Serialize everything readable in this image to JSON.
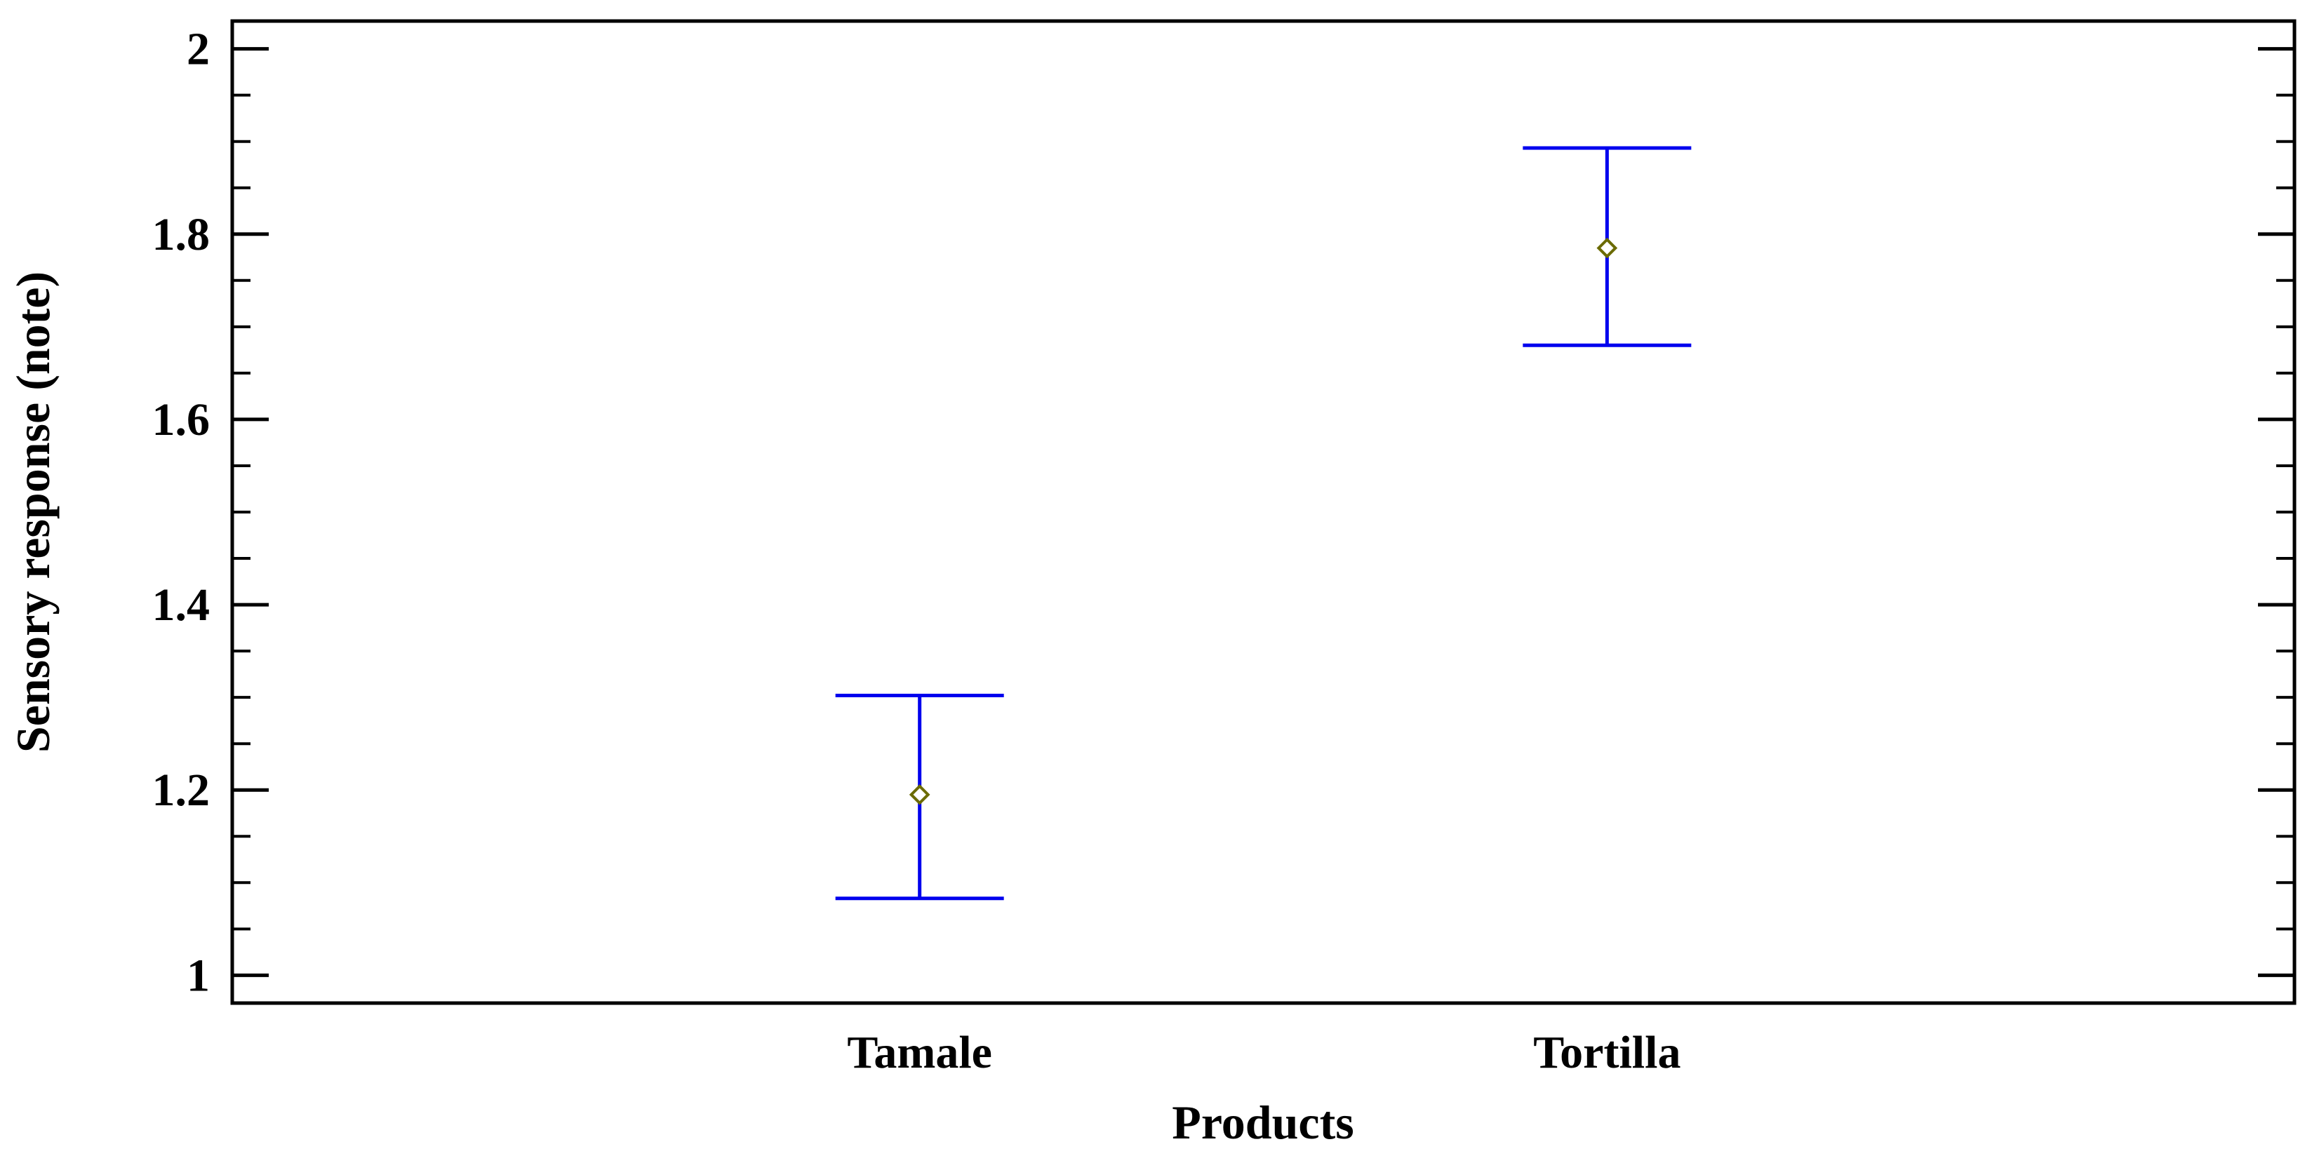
{
  "chart_data": {
    "type": "scatter",
    "subtype": "means-with-error-bars",
    "title": "",
    "xlabel": "Products",
    "ylabel": "Sensory response (note)",
    "categories": [
      "Tamale",
      "Tortilla"
    ],
    "series": [
      {
        "means": [
          1.195,
          1.785
        ],
        "lower": [
          1.083,
          1.68
        ],
        "upper": [
          1.302,
          1.893
        ]
      }
    ],
    "ylim": [
      0.97,
      2.03
    ],
    "yticks": [
      1,
      1.2,
      1.4,
      1.6,
      1.8,
      2
    ],
    "ytick_labels": [
      "1",
      "1.2",
      "1.4",
      "1.6",
      "1.8",
      "2"
    ],
    "y_minor_step": 0.05,
    "grid": false,
    "legend": "none",
    "colors": {
      "errorbar": "#0000ee",
      "marker": "#6b6b00",
      "axes": "#000000"
    }
  }
}
